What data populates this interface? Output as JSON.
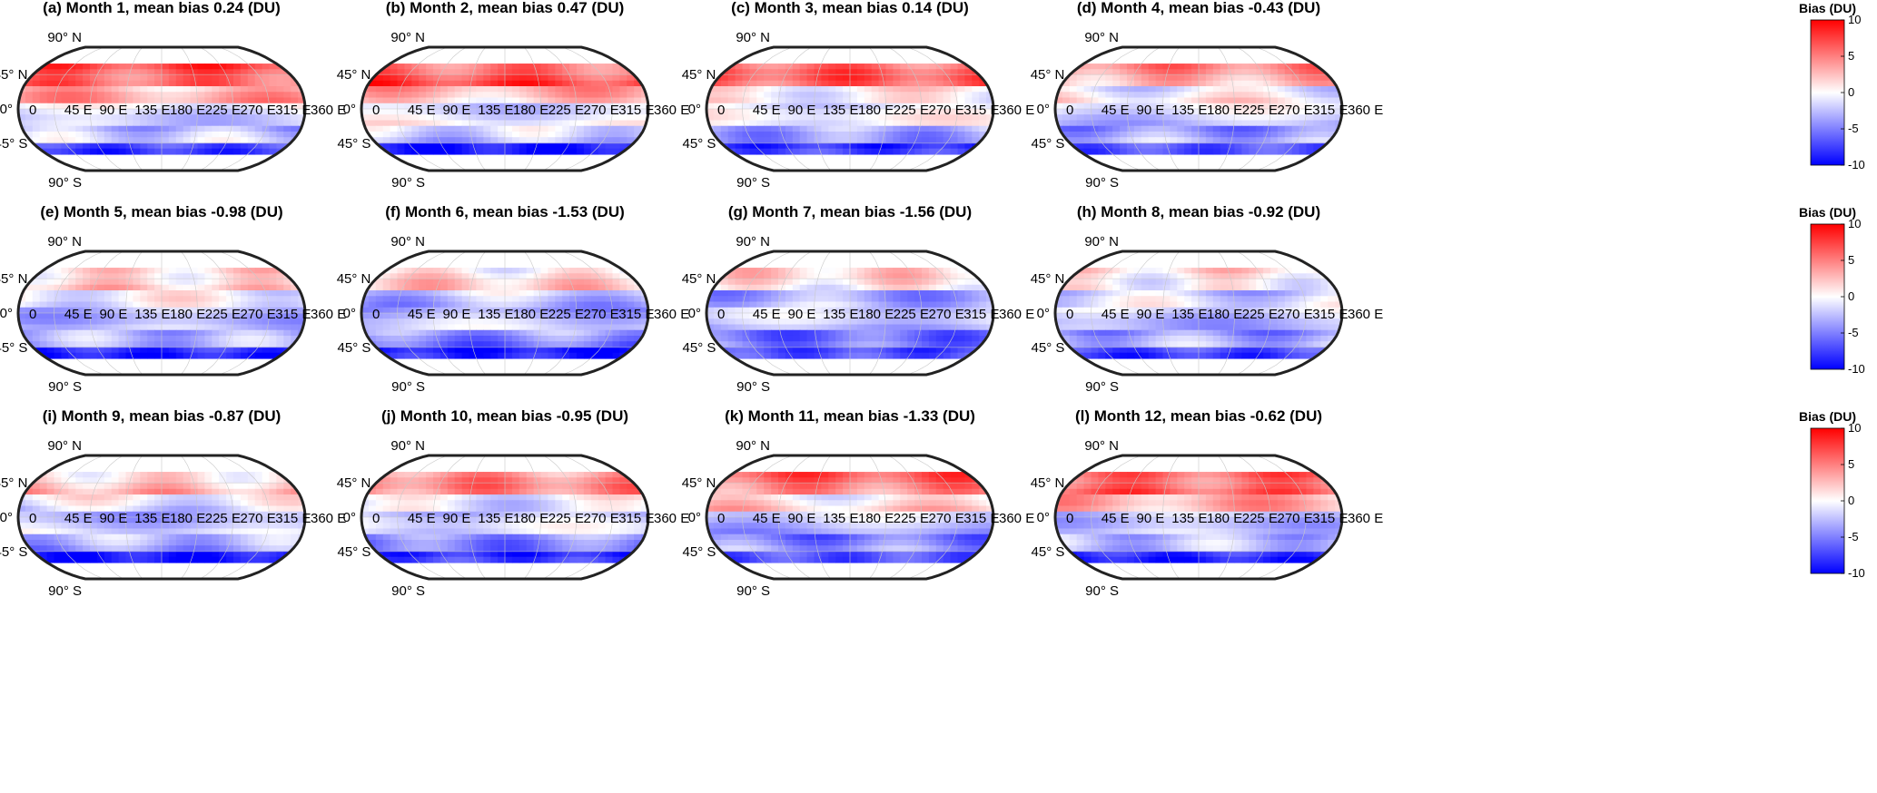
{
  "chart_data": {
    "type": "heatmap",
    "projection": "Robinson",
    "colorbar": {
      "title": "Bias (DU)",
      "range": [
        -10,
        10
      ],
      "ticks": [
        10,
        5,
        0,
        -5,
        -10
      ],
      "colors": {
        "low": "#0000ff",
        "mid": "#ffffff",
        "high": "#ff0000"
      }
    },
    "lat_labels": [
      "90° N",
      "45° N",
      "0°",
      "45° S",
      "90° S"
    ],
    "lon_labels": [
      "0",
      "45 E",
      "90 E",
      "135 E",
      "180 E",
      "225 E",
      "270 E",
      "315 E",
      "360 E"
    ],
    "panels": [
      {
        "title": "(a) Month 1, mean bias 0.24 (DU)",
        "month": 1,
        "mean_bias": 0.24
      },
      {
        "title": "(b) Month 2, mean bias 0.47 (DU)",
        "month": 2,
        "mean_bias": 0.47
      },
      {
        "title": "(c) Month 3, mean bias 0.14 (DU)",
        "month": 3,
        "mean_bias": 0.14
      },
      {
        "title": "(d) Month 4, mean bias -0.43 (DU)",
        "month": 4,
        "mean_bias": -0.43
      },
      {
        "title": "(e) Month 5, mean bias -0.98 (DU)",
        "month": 5,
        "mean_bias": -0.98
      },
      {
        "title": "(f) Month 6, mean bias -1.53 (DU)",
        "month": 6,
        "mean_bias": -1.53
      },
      {
        "title": "(g) Month 7, mean bias -1.56 (DU)",
        "month": 7,
        "mean_bias": -1.56
      },
      {
        "title": "(h) Month 8, mean bias -0.92 (DU)",
        "month": 8,
        "mean_bias": -0.92
      },
      {
        "title": "(i) Month 9, mean bias -0.87 (DU)",
        "month": 9,
        "mean_bias": -0.87
      },
      {
        "title": "(j) Month 10, mean bias -0.95 (DU)",
        "month": 10,
        "mean_bias": -0.95
      },
      {
        "title": "(k) Month 11, mean bias -1.33 (DU)",
        "month": 11,
        "mean_bias": -1.33
      },
      {
        "title": "(l) Month 12, mean bias -0.62 (DU)",
        "month": 12,
        "mean_bias": -0.62
      }
    ]
  }
}
